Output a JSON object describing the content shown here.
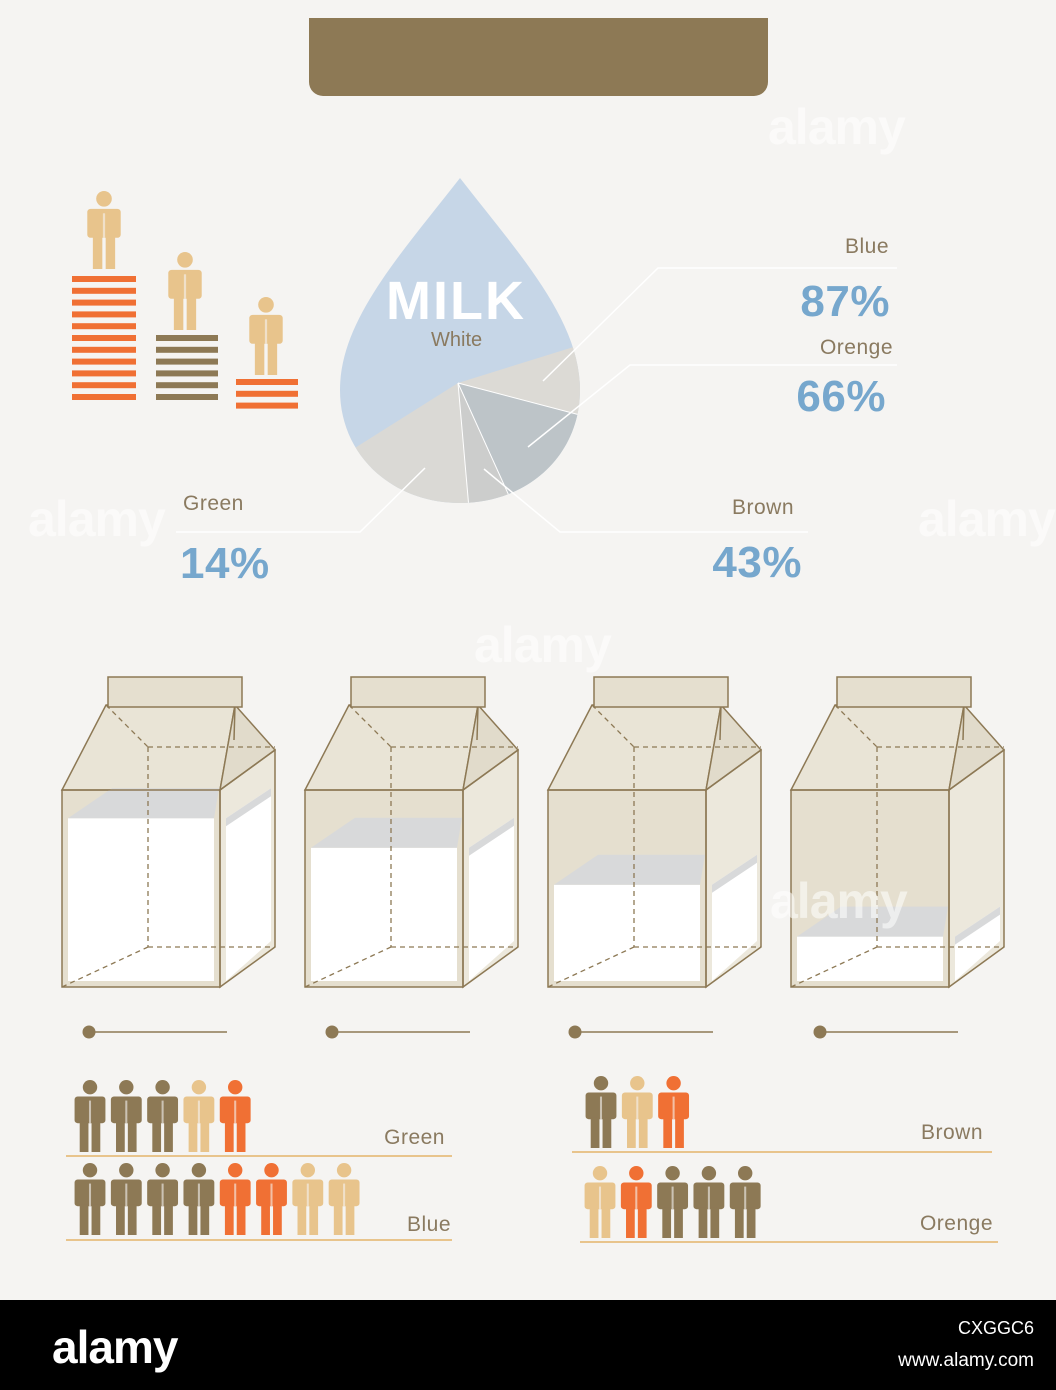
{
  "header": {
    "title": ""
  },
  "drop": {
    "title": "MILK",
    "subtitle": "White"
  },
  "callouts": [
    {
      "label": "Blue",
      "value": "87%"
    },
    {
      "label": "Orenge",
      "value": "66%"
    },
    {
      "label": "Green",
      "value": "14%"
    },
    {
      "label": "Brown",
      "value": "43%"
    }
  ],
  "cartons": {
    "fill_levels": [
      0.88,
      0.72,
      0.52,
      0.24
    ]
  },
  "people_groups": [
    {
      "label": "Green",
      "people": [
        "brown",
        "brown",
        "brown",
        "tan",
        "orange"
      ]
    },
    {
      "label": "Blue",
      "people": [
        "brown",
        "brown",
        "brown",
        "brown",
        "orange",
        "orange",
        "tan",
        "tan"
      ]
    },
    {
      "label": "Brown",
      "people": [
        "brown",
        "tan",
        "orange"
      ]
    },
    {
      "label": "Orenge",
      "people": [
        "tan",
        "orange",
        "brown",
        "brown",
        "brown"
      ]
    }
  ],
  "watermark": {
    "text": "alamy"
  },
  "footer": {
    "logo": "alamy",
    "image_code": "CXGGC6",
    "url": "www.alamy.com"
  },
  "colors": {
    "brown": "#8d7955",
    "tan": "#e8c48c",
    "orange": "#f07034",
    "blue": "#76a7cd",
    "drop": "#c6d6e7"
  }
}
